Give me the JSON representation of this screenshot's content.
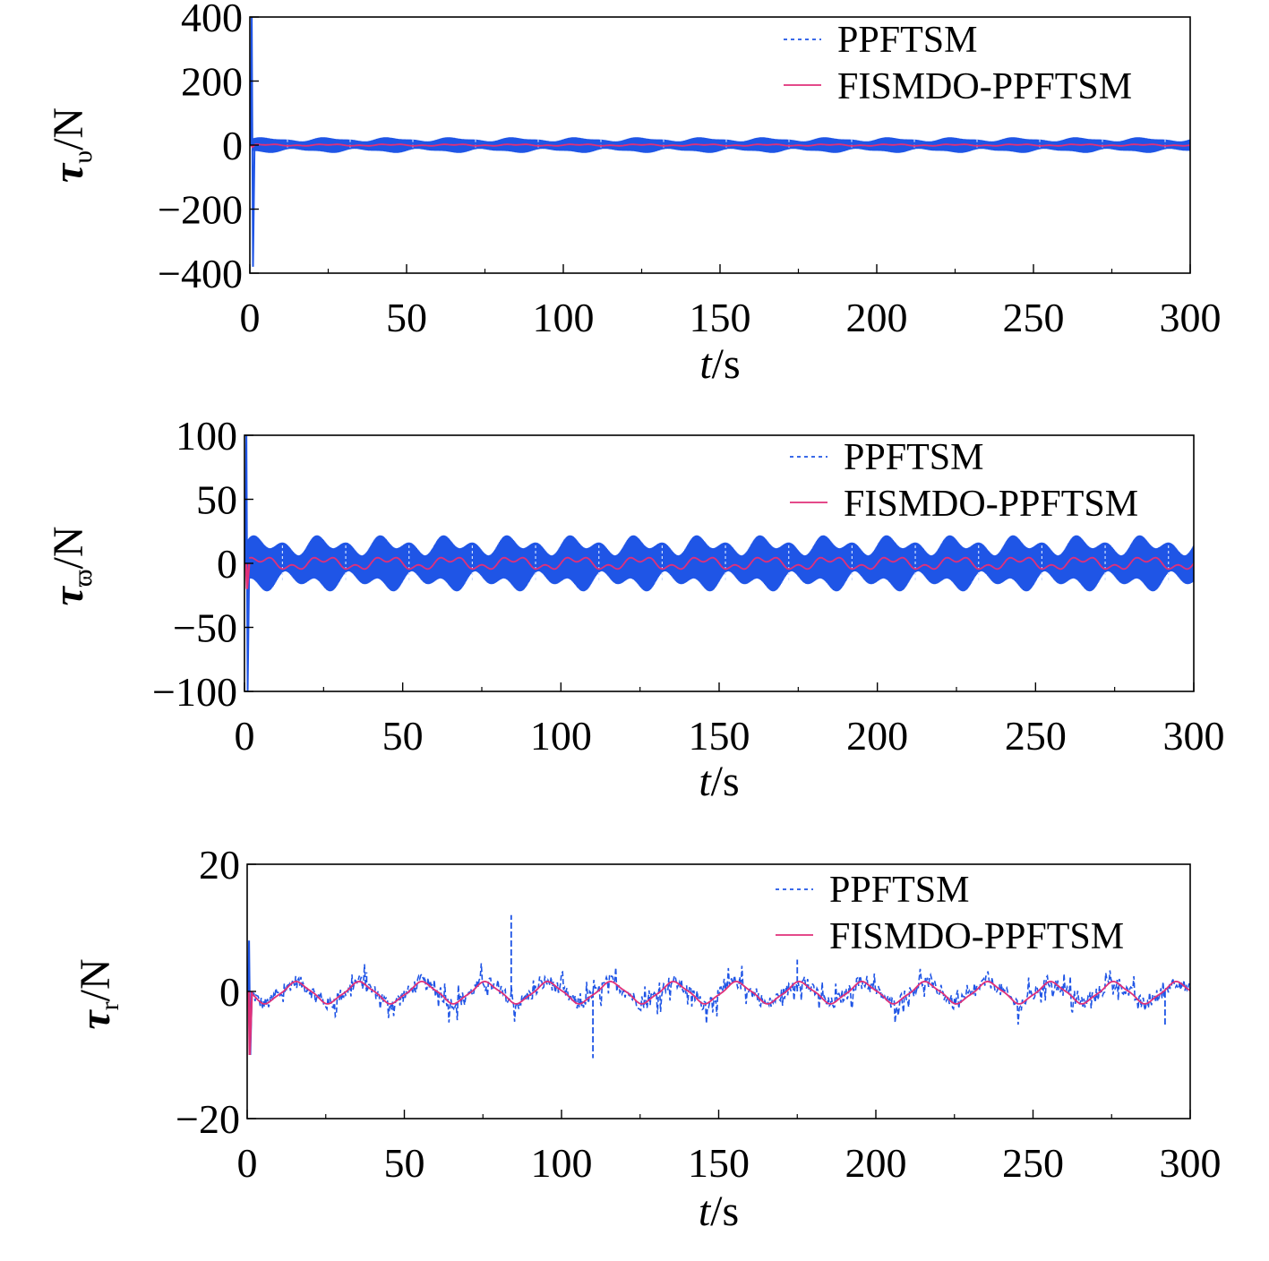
{
  "colors": {
    "ppftsm": "#1f55e6",
    "fismdo": "#e0307a",
    "axis": "#000000"
  },
  "chart_data": [
    {
      "type": "line",
      "ylabel_symbol": "τ",
      "ylabel_subscript": "υ",
      "ylabel_unit": "/N",
      "xlabel_var": "t",
      "xlabel_unit": "/s",
      "xlim": [
        0,
        300
      ],
      "ylim": [
        -400,
        400
      ],
      "xticks": [
        "0",
        "50",
        "100",
        "150",
        "200",
        "250",
        "300"
      ],
      "yticks": [
        "400",
        "200",
        "0",
        "−200",
        "−400"
      ],
      "ytick_values": [
        400,
        200,
        0,
        -200,
        -400
      ],
      "legend": [
        "PPFTSM",
        "FISMDO-PPFTSM"
      ],
      "series": [
        {
          "name": "PPFTSM",
          "style": "dashed",
          "initial_spike": [
            400,
            -380
          ],
          "band_amplitude": 18,
          "band_envelope_amplitude": 5,
          "oscillation_period": 20
        },
        {
          "name": "FISMDO-PPFTSM",
          "style": "solid",
          "amplitude": 3,
          "oscillation_period": 20
        }
      ]
    },
    {
      "type": "line",
      "ylabel_symbol": "τ",
      "ylabel_subscript": "ϖ",
      "ylabel_unit": "/N",
      "xlabel_var": "t",
      "xlabel_unit": "/s",
      "xlim": [
        0,
        300
      ],
      "ylim": [
        -100,
        100
      ],
      "xticks": [
        "0",
        "50",
        "100",
        "150",
        "200",
        "250",
        "300"
      ],
      "yticks": [
        "100",
        "50",
        "0",
        "−50",
        "−100"
      ],
      "ytick_values": [
        100,
        50,
        0,
        -50,
        -100
      ],
      "legend": [
        "PPFTSM",
        "FISMDO-PPFTSM"
      ],
      "series": [
        {
          "name": "PPFTSM",
          "style": "dashed",
          "initial_spike": [
            100,
            -100
          ],
          "band_amplitude": 14,
          "band_envelope_amplitude": 4,
          "oscillation_period": 20
        },
        {
          "name": "FISMDO-PPFTSM",
          "style": "solid",
          "amplitude": 6,
          "oscillation_period": 20
        }
      ]
    },
    {
      "type": "line",
      "ylabel_symbol": "τ",
      "ylabel_subscript": "r",
      "ylabel_unit": "/N",
      "xlabel_var": "t",
      "xlabel_unit": "/s",
      "xlim": [
        0,
        300
      ],
      "ylim": [
        -20,
        20
      ],
      "xticks": [
        "0",
        "50",
        "100",
        "150",
        "200",
        "250",
        "300"
      ],
      "yticks": [
        "20",
        "0",
        "−20"
      ],
      "ytick_values": [
        20,
        0,
        -20
      ],
      "legend": [
        "PPFTSM",
        "FISMDO-PPFTSM"
      ],
      "series": [
        {
          "name": "PPFTSM",
          "style": "dashed",
          "initial_spike": [
            8,
            -10
          ],
          "noise_amplitude": 1.5,
          "spikes": [
            [
              84,
              12
            ],
            [
              110,
              -10.5
            ],
            [
              175,
              5
            ],
            [
              38,
              3
            ],
            [
              292,
              -5.5
            ]
          ]
        },
        {
          "name": "FISMDO-PPFTSM",
          "style": "solid",
          "amplitude": 1.8,
          "offset": -0.2,
          "oscillation_period": 20
        }
      ]
    }
  ]
}
